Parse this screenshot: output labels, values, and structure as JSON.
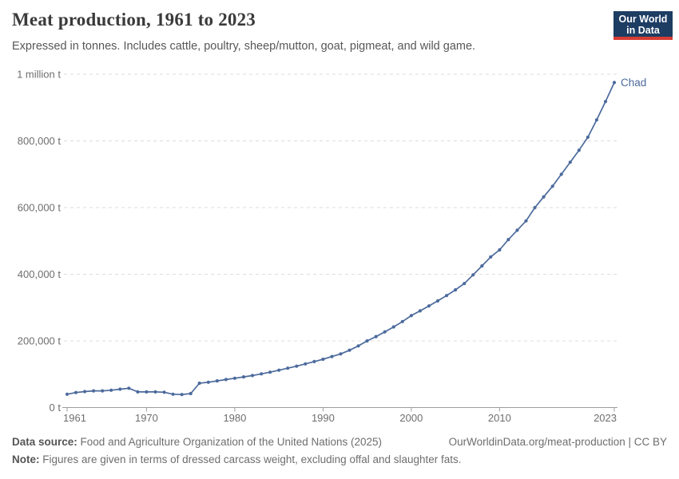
{
  "header": {
    "title": "Meat production, 1961 to 2023",
    "subtitle": "Expressed in tonnes. Includes cattle, poultry, sheep/mutton, goat, pigmeat, and wild game."
  },
  "logo": {
    "line1": "Our World",
    "line2": "in Data",
    "bg_color": "#1d3d63",
    "bar_color": "#d73c32"
  },
  "chart_data": {
    "type": "line",
    "title": "Meat production, 1961 to 2023",
    "xlabel": "",
    "ylabel": "",
    "xlim": [
      1961,
      2023
    ],
    "ylim": [
      0,
      1000000
    ],
    "x_ticks": [
      1961,
      1970,
      1980,
      1990,
      2000,
      2010,
      2023
    ],
    "y_ticks": [
      {
        "value": 0,
        "label": "0 t"
      },
      {
        "value": 200000,
        "label": "200,000 t"
      },
      {
        "value": 400000,
        "label": "400,000 t"
      },
      {
        "value": 600000,
        "label": "600,000 t"
      },
      {
        "value": 800000,
        "label": "800,000 t"
      },
      {
        "value": 1000000,
        "label": "1 million t"
      }
    ],
    "grid": true,
    "legend_position": "end-of-line-label",
    "series": [
      {
        "name": "Chad",
        "color": "#4c6a9c",
        "x": [
          1961,
          1962,
          1963,
          1964,
          1965,
          1966,
          1967,
          1968,
          1969,
          1970,
          1971,
          1972,
          1973,
          1974,
          1975,
          1976,
          1977,
          1978,
          1979,
          1980,
          1981,
          1982,
          1983,
          1984,
          1985,
          1986,
          1987,
          1988,
          1989,
          1990,
          1991,
          1992,
          1993,
          1994,
          1995,
          1996,
          1997,
          1998,
          1999,
          2000,
          2001,
          2002,
          2003,
          2004,
          2005,
          2006,
          2007,
          2008,
          2009,
          2010,
          2011,
          2012,
          2013,
          2014,
          2015,
          2016,
          2017,
          2018,
          2019,
          2020,
          2021,
          2022,
          2023
        ],
        "values": [
          40000,
          45000,
          48000,
          50000,
          50000,
          52000,
          55000,
          58000,
          47000,
          47000,
          47000,
          46000,
          40000,
          39000,
          42000,
          73000,
          76000,
          80000,
          84000,
          88000,
          92000,
          96000,
          101000,
          106000,
          112000,
          118000,
          124000,
          131000,
          138000,
          145000,
          153000,
          161000,
          172000,
          185000,
          200000,
          213000,
          227000,
          242000,
          258000,
          276000,
          290000,
          305000,
          320000,
          336000,
          353000,
          372000,
          398000,
          425000,
          452000,
          473000,
          504000,
          532000,
          560000,
          600000,
          632000,
          664000,
          700000,
          736000,
          772000,
          811000,
          863000,
          918000,
          975000
        ]
      }
    ]
  },
  "footer": {
    "datasource_label": "Data source:",
    "datasource_text": "Food and Agriculture Organization of the United Nations (2025)",
    "link_text": "OurWorldinData.org/meat-production | CC BY",
    "note_label": "Note:",
    "note_text": "Figures are given in terms of dressed carcass weight, excluding offal and slaughter fats."
  },
  "colors": {
    "line": "#4c6a9c",
    "grid": "#dcdcdc",
    "axis": "#9e9e9e",
    "tick_text": "#6e6e6e",
    "title_text": "#3a3a3a",
    "subtitle_text": "#575757"
  }
}
